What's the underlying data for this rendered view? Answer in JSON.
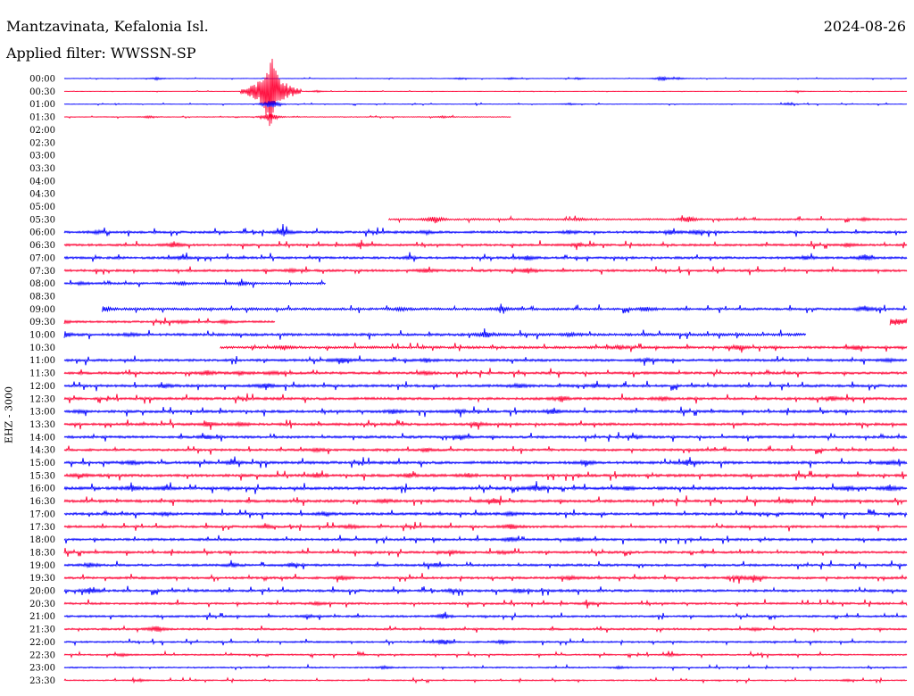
{
  "header": {
    "station": "Mantzavinata, Kefalonia Isl.",
    "date": "2024-08-26",
    "filter": "Applied filter: WWSSN-SP"
  },
  "chart_data": {
    "type": "seismogram-helicorder",
    "title": "Mantzavinata, Kefalonia Isl.",
    "date": "2024-08-26",
    "filter": "WWSSN-SP",
    "ylabel": "EHZ - 3000",
    "colors": {
      "even": "#0000ff",
      "odd": "#ff0033"
    },
    "rows": [
      {
        "label": "00:00",
        "start": 0.0,
        "end": 1.0,
        "level": 0.22,
        "events": [
          [
            0.11,
            1.5
          ],
          [
            0.47,
            1.1
          ],
          [
            0.53,
            1.2
          ],
          [
            0.61,
            1.1
          ],
          [
            0.71,
            3.2
          ],
          [
            0.73,
            1.1
          ]
        ]
      },
      {
        "label": "00:30",
        "start": 0.0,
        "end": 1.0,
        "level": 0.15,
        "events": [
          [
            0.245,
            44.0
          ],
          [
            0.3,
            1.2
          ],
          [
            0.87,
            1.1
          ]
        ]
      },
      {
        "label": "01:00",
        "start": 0.0,
        "end": 1.0,
        "level": 0.25,
        "events": [
          [
            0.245,
            7.0
          ],
          [
            0.6,
            1.1
          ],
          [
            0.86,
            1.2
          ]
        ]
      },
      {
        "label": "01:30",
        "start": 0.0,
        "end": 0.53,
        "level": 0.3,
        "events": [
          [
            0.245,
            6.0
          ],
          [
            0.1,
            1.2
          ],
          [
            0.45,
            1.1
          ]
        ]
      },
      {
        "label": "02:00",
        "start": 0,
        "end": 0,
        "level": 0,
        "events": []
      },
      {
        "label": "02:30",
        "start": 0,
        "end": 0,
        "level": 0,
        "events": []
      },
      {
        "label": "03:00",
        "start": 0,
        "end": 0,
        "level": 0,
        "events": []
      },
      {
        "label": "03:30",
        "start": 0,
        "end": 0,
        "level": 0,
        "events": []
      },
      {
        "label": "04:00",
        "start": 0,
        "end": 0,
        "level": 0,
        "events": []
      },
      {
        "label": "04:30",
        "start": 0,
        "end": 0,
        "level": 0,
        "events": []
      },
      {
        "label": "05:00",
        "start": 0,
        "end": 0,
        "level": 0,
        "events": []
      },
      {
        "label": "05:30",
        "start": 0.385,
        "end": 1.0,
        "level": 0.7,
        "events": [
          [
            0.44,
            4.5
          ],
          [
            0.74,
            4.0
          ],
          [
            0.61,
            1.5
          ],
          [
            0.95,
            1.5
          ]
        ]
      },
      {
        "label": "06:00",
        "start": 0.0,
        "end": 1.0,
        "level": 0.95,
        "events": [
          [
            0.04,
            1.8
          ],
          [
            0.26,
            4.5
          ],
          [
            0.43,
            1.8
          ],
          [
            0.6,
            1.6
          ],
          [
            0.72,
            2.2
          ],
          [
            0.75,
            1.8
          ]
        ]
      },
      {
        "label": "06:30",
        "start": 0.0,
        "end": 1.0,
        "level": 0.9,
        "events": [
          [
            0.13,
            3.5
          ],
          [
            0.35,
            2.2
          ],
          [
            0.61,
            2.2
          ],
          [
            0.93,
            1.8
          ]
        ]
      },
      {
        "label": "07:00",
        "start": 0.0,
        "end": 1.0,
        "level": 0.95,
        "events": [
          [
            0.14,
            2.5
          ],
          [
            0.41,
            1.8
          ],
          [
            0.55,
            2.5
          ],
          [
            0.88,
            2.0
          ],
          [
            0.95,
            3.5
          ]
        ]
      },
      {
        "label": "07:30",
        "start": 0.0,
        "end": 1.0,
        "level": 0.95,
        "events": [
          [
            0.43,
            2.5
          ],
          [
            0.55,
            3.0
          ],
          [
            0.27,
            1.6
          ]
        ]
      },
      {
        "label": "08:00",
        "start": 0.0,
        "end": 0.31,
        "level": 0.85,
        "events": [
          [
            0.02,
            1.8
          ],
          [
            0.21,
            2.5
          ],
          [
            0.14,
            2.0
          ]
        ]
      },
      {
        "label": "08:30",
        "start": 0,
        "end": 0,
        "level": 0,
        "events": []
      },
      {
        "label": "09:00",
        "start": 0.045,
        "end": 1.0,
        "level": 0.95,
        "events": [
          [
            0.045,
            3.5
          ],
          [
            0.4,
            2.0
          ],
          [
            0.52,
            2.0
          ],
          [
            0.69,
            2.5
          ],
          [
            0.95,
            3.5
          ]
        ]
      },
      {
        "label": "09:30",
        "start": 0.0,
        "end": 0.25,
        "level": 0.85,
        "events": [
          [
            0.0,
            1.8
          ],
          [
            0.14,
            1.6
          ],
          [
            0.19,
            1.6
          ]
        ],
        "extra": [
          [
            0.98,
            1.0,
            3.0
          ]
        ]
      },
      {
        "label": "10:00",
        "start": 0.0,
        "end": 0.88,
        "level": 1.05,
        "events": [
          [
            0.0,
            3.5
          ],
          [
            0.08,
            1.8
          ],
          [
            0.5,
            3.5
          ],
          [
            0.6,
            2.0
          ]
        ]
      },
      {
        "label": "10:30",
        "start": 0.185,
        "end": 1.0,
        "level": 0.95,
        "events": [
          [
            0.66,
            2.2
          ],
          [
            0.8,
            3.0
          ],
          [
            0.94,
            2.5
          ],
          [
            0.26,
            1.6
          ]
        ]
      },
      {
        "label": "11:00",
        "start": 0.0,
        "end": 1.0,
        "level": 1.0,
        "events": [
          [
            0.33,
            2.5
          ],
          [
            0.43,
            1.8
          ],
          [
            0.69,
            2.0
          ],
          [
            0.98,
            1.6
          ]
        ]
      },
      {
        "label": "11:30",
        "start": 0.0,
        "end": 1.0,
        "level": 1.0,
        "events": [
          [
            0.17,
            2.5
          ],
          [
            0.21,
            2.0
          ],
          [
            0.25,
            2.0
          ],
          [
            0.43,
            2.0
          ]
        ]
      },
      {
        "label": "12:00",
        "start": 0.0,
        "end": 1.0,
        "level": 1.05,
        "events": [
          [
            0.12,
            2.2
          ],
          [
            0.24,
            3.0
          ],
          [
            0.54,
            2.2
          ],
          [
            0.63,
            2.0
          ]
        ]
      },
      {
        "label": "12:30",
        "start": 0.0,
        "end": 1.0,
        "level": 1.05,
        "events": [
          [
            0.59,
            3.0
          ],
          [
            0.91,
            2.5
          ],
          [
            0.71,
            1.8
          ]
        ]
      },
      {
        "label": "13:00",
        "start": 0.0,
        "end": 1.0,
        "level": 1.05,
        "events": [
          [
            0.02,
            1.8
          ],
          [
            0.39,
            2.2
          ],
          [
            0.58,
            2.5
          ],
          [
            0.47,
            2.0
          ]
        ]
      },
      {
        "label": "13:30",
        "start": 0.0,
        "end": 1.0,
        "level": 1.05,
        "events": [
          [
            0.17,
            2.5
          ],
          [
            0.21,
            2.0
          ],
          [
            0.49,
            2.2
          ]
        ]
      },
      {
        "label": "14:00",
        "start": 0.0,
        "end": 1.0,
        "level": 1.0,
        "events": [
          [
            0.17,
            2.0
          ],
          [
            0.47,
            3.0
          ],
          [
            0.68,
            2.0
          ]
        ]
      },
      {
        "label": "14:30",
        "start": 0.0,
        "end": 1.0,
        "level": 0.95,
        "events": [
          [
            0.3,
            1.8
          ],
          [
            0.43,
            1.8
          ]
        ]
      },
      {
        "label": "15:00",
        "start": 0.0,
        "end": 1.0,
        "level": 1.1,
        "events": [
          [
            0.08,
            2.2
          ],
          [
            0.2,
            2.2
          ],
          [
            0.62,
            3.2
          ],
          [
            0.74,
            2.8
          ],
          [
            0.98,
            2.2
          ]
        ]
      },
      {
        "label": "15:30",
        "start": 0.0,
        "end": 1.0,
        "level": 1.1,
        "events": [
          [
            0.02,
            2.0
          ],
          [
            0.3,
            2.5
          ],
          [
            0.41,
            2.5
          ],
          [
            0.48,
            2.0
          ]
        ]
      },
      {
        "label": "16:00",
        "start": 0.0,
        "end": 1.0,
        "level": 1.15,
        "events": [
          [
            0.08,
            3.0
          ],
          [
            0.12,
            2.5
          ],
          [
            0.56,
            3.2
          ],
          [
            0.67,
            2.0
          ],
          [
            0.93,
            2.5
          ],
          [
            0.98,
            3.0
          ]
        ]
      },
      {
        "label": "16:30",
        "start": 0.0,
        "end": 1.0,
        "level": 1.1,
        "events": [
          [
            0.38,
            2.2
          ],
          [
            0.51,
            2.8
          ],
          [
            0.86,
            2.0
          ]
        ]
      },
      {
        "label": "17:00",
        "start": 0.0,
        "end": 1.0,
        "level": 1.05,
        "events": [
          [
            0.12,
            2.0
          ],
          [
            0.31,
            2.2
          ],
          [
            0.53,
            2.0
          ]
        ]
      },
      {
        "label": "17:30",
        "start": 0.0,
        "end": 1.0,
        "level": 0.95,
        "events": [
          [
            0.24,
            1.8
          ],
          [
            0.53,
            3.0
          ],
          [
            0.34,
            2.0
          ]
        ]
      },
      {
        "label": "18:00",
        "start": 0.0,
        "end": 1.0,
        "level": 0.95,
        "events": [
          [
            0.53,
            2.5
          ],
          [
            0.61,
            1.6
          ]
        ]
      },
      {
        "label": "18:30",
        "start": 0.0,
        "end": 1.0,
        "level": 0.95,
        "events": [
          [
            0.46,
            1.6
          ],
          [
            0.52,
            1.8
          ]
        ]
      },
      {
        "label": "19:00",
        "start": 0.0,
        "end": 1.0,
        "level": 0.95,
        "events": [
          [
            0.03,
            2.5
          ],
          [
            0.2,
            2.2
          ],
          [
            0.27,
            2.0
          ],
          [
            0.44,
            2.0
          ]
        ]
      },
      {
        "label": "19:30",
        "start": 0.0,
        "end": 1.0,
        "level": 0.95,
        "events": [
          [
            0.33,
            2.8
          ],
          [
            0.6,
            2.0
          ],
          [
            0.8,
            2.5
          ],
          [
            0.82,
            2.5
          ]
        ]
      },
      {
        "label": "20:00",
        "start": 0.0,
        "end": 1.0,
        "level": 1.0,
        "events": [
          [
            0.03,
            3.5
          ],
          [
            0.46,
            2.0
          ],
          [
            0.54,
            2.0
          ]
        ]
      },
      {
        "label": "20:30",
        "start": 0.0,
        "end": 1.0,
        "level": 0.85,
        "events": [
          [
            0.3,
            1.6
          ],
          [
            0.62,
            1.6
          ]
        ]
      },
      {
        "label": "21:00",
        "start": 0.0,
        "end": 1.0,
        "level": 0.8,
        "events": [
          [
            0.45,
            3.0
          ],
          [
            0.29,
            1.6
          ]
        ]
      },
      {
        "label": "21:30",
        "start": 0.0,
        "end": 1.0,
        "level": 0.8,
        "events": [
          [
            0.11,
            4.0
          ],
          [
            0.82,
            1.5
          ]
        ]
      },
      {
        "label": "22:00",
        "start": 0.0,
        "end": 1.0,
        "level": 0.7,
        "events": [
          [
            0.45,
            3.5
          ],
          [
            0.52,
            2.5
          ]
        ]
      },
      {
        "label": "22:30",
        "start": 0.0,
        "end": 1.0,
        "level": 0.6,
        "events": [
          [
            0.07,
            1.5
          ],
          [
            0.72,
            1.5
          ]
        ]
      },
      {
        "label": "23:00",
        "start": 0.0,
        "end": 1.0,
        "level": 0.55,
        "events": [
          [
            0.38,
            1.5
          ],
          [
            0.66,
            1.4
          ]
        ]
      },
      {
        "label": "23:30",
        "start": 0.0,
        "end": 1.0,
        "level": 0.5,
        "events": [
          [
            0.93,
            1.4
          ],
          [
            0.09,
            1.3
          ]
        ]
      }
    ]
  }
}
